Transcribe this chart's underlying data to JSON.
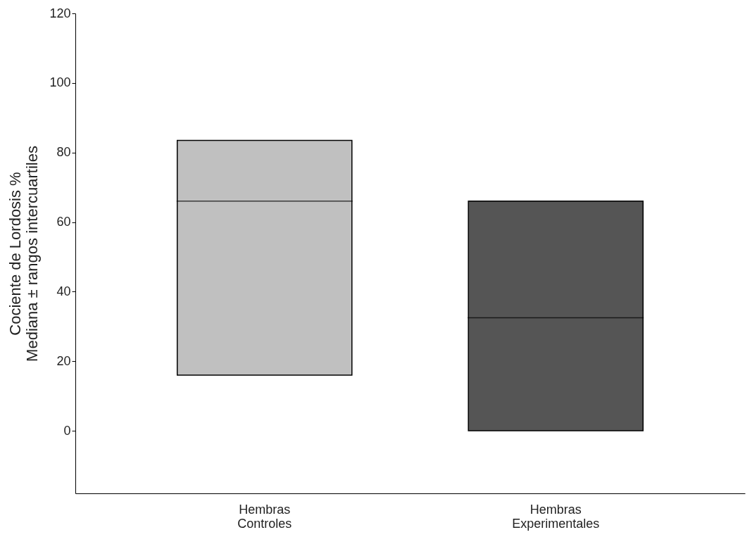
{
  "chart_data": {
    "type": "box",
    "ylabel": "Cociente de Lordosis %\nMediana ± rangos intercuartiles",
    "categories": [
      "Hembras\nControles",
      "Hembras\nExperimentales"
    ],
    "colors": [
      "#c0c0c0",
      "#555555"
    ],
    "boxes": [
      {
        "low": 16,
        "q1": 16,
        "median": 66,
        "q3": 83.5,
        "high": 83.5
      },
      {
        "low": 0,
        "q1": 0,
        "median": 32.5,
        "q3": 66,
        "high": 66
      }
    ],
    "ylim": [
      -18,
      120
    ],
    "yticks": [
      0,
      20,
      40,
      60,
      80,
      100,
      120
    ],
    "grid": false
  }
}
